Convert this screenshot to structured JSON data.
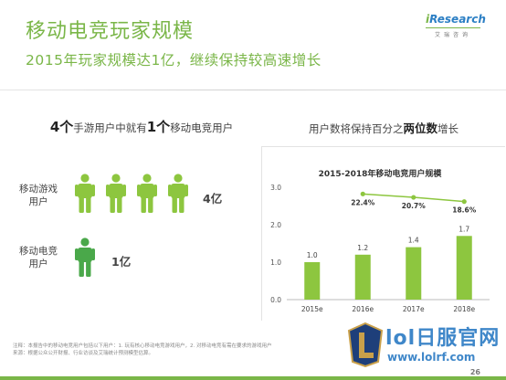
{
  "header": {
    "title": "移动电竞玩家规模",
    "subtitle": "2015年玩家规模达1亿，继续保持较高速增长",
    "logo_main_i": "i",
    "logo_main_rest": "Research",
    "logo_sub": "艾瑞咨询"
  },
  "left": {
    "heading_pre": "",
    "heading_num1": "4个",
    "heading_mid": "手游用户中就有",
    "heading_num2": "1个",
    "heading_post": "移动电竞用户",
    "rows": [
      {
        "label_line1": "移动游戏",
        "label_line2": "用户",
        "count": "4亿",
        "people": 4,
        "color": "#8dc63f"
      },
      {
        "label_line1": "移动电竞",
        "label_line2": "用户",
        "count": "1亿",
        "people": 1,
        "color": "#4aa84a"
      }
    ]
  },
  "right": {
    "heading_pre": "用户数将保持百分之",
    "heading_bold": "两位数",
    "heading_post": "增长"
  },
  "chart_data": {
    "type": "bar",
    "title": "2015-2018年移动电竞用户规模",
    "categories": [
      "2015e",
      "2016e",
      "2017e",
      "2018e"
    ],
    "values": [
      1.0,
      1.2,
      1.4,
      1.7
    ],
    "value_labels": [
      "1.0",
      "1.2",
      "1.4",
      "1.7"
    ],
    "ylim": [
      0,
      3.0
    ],
    "yticks": [
      "0.0",
      "1.0",
      "2.0",
      "3.0"
    ],
    "bar_color": "#8dc63f",
    "growth_line": {
      "color": "#8dc63f",
      "points": [
        {
          "category": "2016e",
          "value": 22.4,
          "label": "22.4%"
        },
        {
          "category": "2017e",
          "value": 20.7,
          "label": "20.7%"
        },
        {
          "category": "2018e",
          "value": 18.6,
          "label": "18.6%"
        }
      ]
    }
  },
  "footer": {
    "note_line1": "注释：本报告中的移动电竞用户包括以下用户：1. 玩有核心移动电竞游戏用户，2. 对移动电竞有需在要求的游戏用户",
    "note_line2": "来源：根据公众公开财报、行业访谈及艾瑞统计预测模型估算。",
    "page": "26"
  },
  "watermark": {
    "line1": "lol日服官网",
    "line2": "www.lolrf.com"
  }
}
